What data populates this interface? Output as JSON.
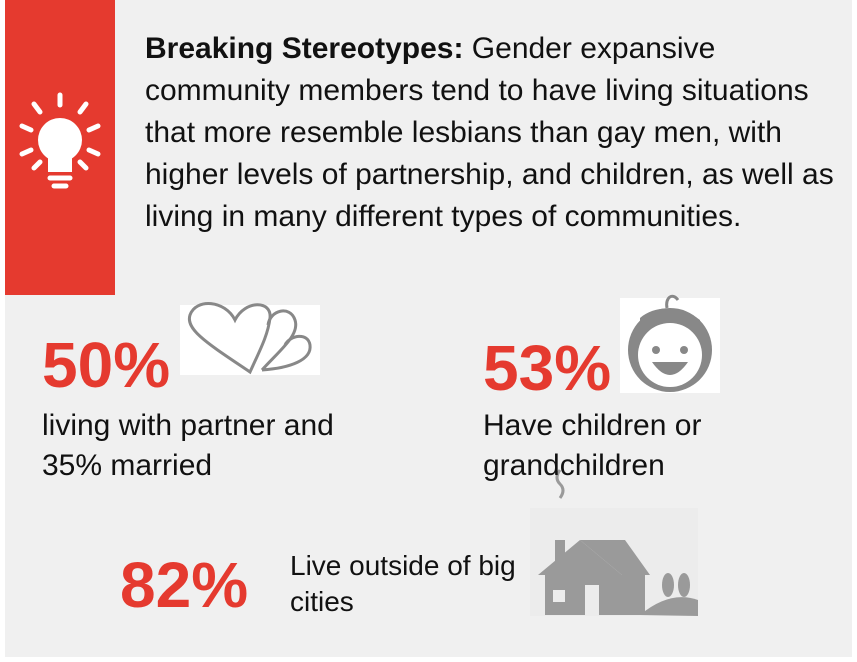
{
  "callout": {
    "label": "Breaking Stereotypes:",
    "text": "Gender expansive community members tend to have living situations that more resemble lesbians than gay men, with higher levels of partnership, and children, as well as living in many different types of communities."
  },
  "stats": [
    {
      "value": "50%",
      "text": "living with partner and 35% married"
    },
    {
      "value": "53%",
      "text": "Have children or grandchildren"
    },
    {
      "value": "82%",
      "text": "Live outside of big cities"
    }
  ]
}
